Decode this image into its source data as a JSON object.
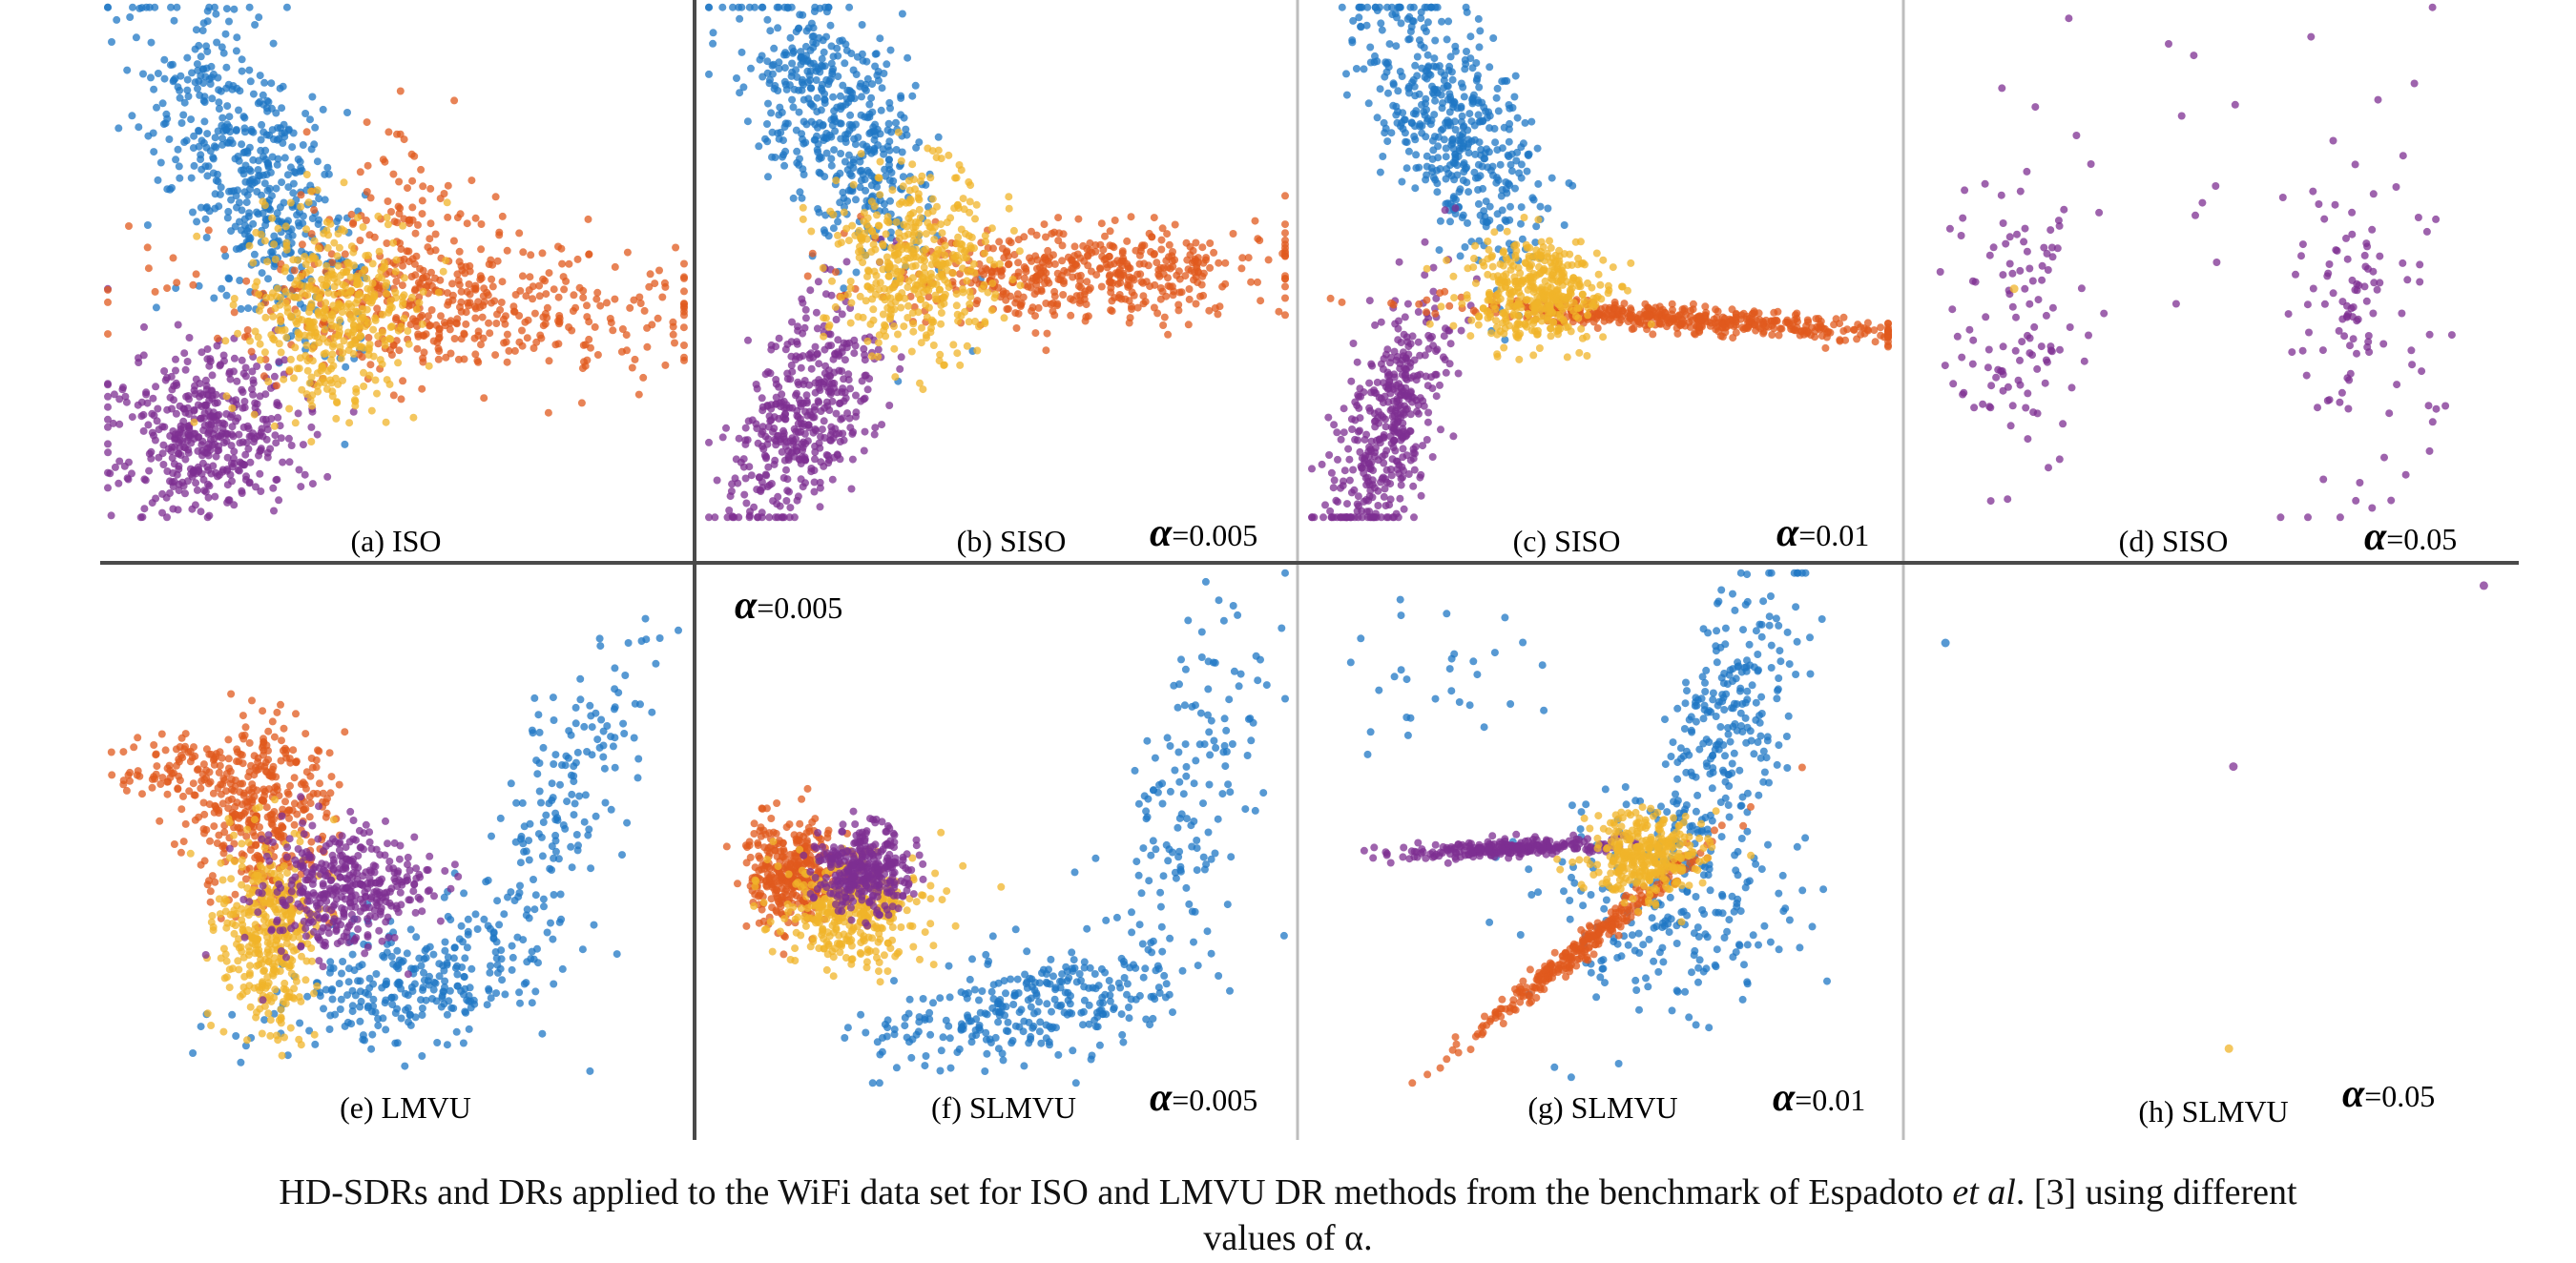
{
  "colors": {
    "blue": "#1f77c4",
    "orange": "#e05a1e",
    "yellow": "#f0b429",
    "purple": "#7e2f92",
    "frame_dark": "#4a4a4a",
    "frame_light": "#bdbdbd"
  },
  "caption": {
    "line1_prefix": "HD-SDRs and DRs applied to the WiFi data set for ISO and LMVU DR methods from the benchmark of Espadoto ",
    "line1_italic": "et al",
    "line1_suffix": ". [3] using different",
    "line2": "values of α."
  },
  "chart_data": [
    {
      "type": "scatter",
      "label": "(a) ISO",
      "alpha": "",
      "series": [
        {
          "color": "blue",
          "clusters": [
            {
              "cx": 0.25,
              "cy": 0.32,
              "sx": 0.07,
              "sy": 0.17,
              "n": 520,
              "rot": -0.35
            }
          ]
        },
        {
          "color": "purple",
          "clusters": [
            {
              "cx": 0.17,
              "cy": 0.83,
              "sx": 0.08,
              "sy": 0.08,
              "n": 450,
              "rot": -0.4
            }
          ]
        },
        {
          "color": "orange",
          "clusters": [
            {
              "cx": 0.6,
              "cy": 0.58,
              "sx": 0.2,
              "sy": 0.07,
              "n": 480,
              "rot": 0.05
            },
            {
              "cx": 0.5,
              "cy": 0.4,
              "sx": 0.06,
              "sy": 0.1,
              "n": 70,
              "rot": 0
            }
          ]
        },
        {
          "color": "yellow",
          "clusters": [
            {
              "cx": 0.39,
              "cy": 0.6,
              "sx": 0.07,
              "sy": 0.1,
              "n": 420,
              "rot": 0
            }
          ]
        }
      ]
    },
    {
      "type": "scatter",
      "label": "(b) SISO",
      "alpha": "=0.005",
      "series": [
        {
          "color": "blue",
          "clusters": [
            {
              "cx": 0.22,
              "cy": 0.23,
              "sx": 0.06,
              "sy": 0.14,
              "n": 480,
              "rot": -0.45
            }
          ]
        },
        {
          "color": "purple",
          "clusters": [
            {
              "cx": 0.17,
              "cy": 0.8,
              "sx": 0.05,
              "sy": 0.12,
              "n": 430,
              "rot": 0.35
            }
          ]
        },
        {
          "color": "orange",
          "clusters": [
            {
              "cx": 0.65,
              "cy": 0.52,
              "sx": 0.17,
              "sy": 0.045,
              "n": 480,
              "rot": -0.03
            }
          ]
        },
        {
          "color": "yellow",
          "clusters": [
            {
              "cx": 0.36,
              "cy": 0.5,
              "sx": 0.07,
              "sy": 0.09,
              "n": 420,
              "rot": 0
            }
          ]
        }
      ]
    },
    {
      "type": "scatter",
      "label": "(c) SISO",
      "alpha": "=0.01",
      "series": [
        {
          "color": "blue",
          "clusters": [
            {
              "cx": 0.24,
              "cy": 0.23,
              "sx": 0.06,
              "sy": 0.14,
              "n": 470,
              "rot": -0.4
            }
          ]
        },
        {
          "color": "purple",
          "clusters": [
            {
              "cx": 0.14,
              "cy": 0.82,
              "sx": 0.04,
              "sy": 0.13,
              "n": 420,
              "rot": 0.25
            }
          ]
        },
        {
          "color": "orange",
          "clusters": [
            {
              "cx": 0.65,
              "cy": 0.61,
              "sx": 0.2,
              "sy": 0.012,
              "n": 460,
              "rot": 0.07
            }
          ]
        },
        {
          "color": "yellow",
          "clusters": [
            {
              "cx": 0.39,
              "cy": 0.56,
              "sx": 0.06,
              "sy": 0.05,
              "n": 400,
              "rot": 0
            }
          ]
        }
      ]
    },
    {
      "type": "scatter",
      "label": "(d) SISO",
      "alpha": "=0.05",
      "series": [
        {
          "color": "purple",
          "clusters": [
            {
              "cx": 0.17,
              "cy": 0.6,
              "sx": 0.06,
              "sy": 0.16,
              "n": 110,
              "rot": 0
            },
            {
              "cx": 0.77,
              "cy": 0.6,
              "sx": 0.06,
              "sy": 0.16,
              "n": 110,
              "rot": 0
            },
            {
              "cx": 0.5,
              "cy": 0.35,
              "sx": 0.2,
              "sy": 0.2,
              "n": 20,
              "rot": 0
            }
          ]
        },
        {
          "color": "yellow",
          "clusters": [
            {
              "cx": 0.17,
              "cy": 0.55,
              "sx": 0.005,
              "sy": 0.005,
              "n": 1,
              "rot": 0
            }
          ]
        }
      ]
    },
    {
      "type": "scatter",
      "label": "(e) LMVU",
      "alpha": "",
      "series": [
        {
          "color": "blue",
          "clusters": [
            {
              "cx": 0.52,
              "cy": 0.8,
              "sx": 0.13,
              "sy": 0.06,
              "n": 280,
              "rot": -0.3
            },
            {
              "cx": 0.78,
              "cy": 0.45,
              "sx": 0.05,
              "sy": 0.17,
              "n": 170,
              "rot": 0.35
            }
          ]
        },
        {
          "color": "orange",
          "clusters": [
            {
              "cx": 0.27,
              "cy": 0.47,
              "sx": 0.06,
              "sy": 0.09,
              "n": 380,
              "rot": 0
            },
            {
              "cx": 0.12,
              "cy": 0.38,
              "sx": 0.05,
              "sy": 0.03,
              "n": 70,
              "rot": 0
            }
          ]
        },
        {
          "color": "yellow",
          "clusters": [
            {
              "cx": 0.28,
              "cy": 0.7,
              "sx": 0.04,
              "sy": 0.1,
              "n": 380,
              "rot": 0
            }
          ]
        },
        {
          "color": "purple",
          "clusters": [
            {
              "cx": 0.41,
              "cy": 0.62,
              "sx": 0.07,
              "sy": 0.06,
              "n": 380,
              "rot": 0
            }
          ]
        }
      ]
    },
    {
      "type": "scatter",
      "label": "(f) SLMVU",
      "alpha": "=0.005",
      "series": [
        {
          "color": "blue",
          "clusters": [
            {
              "cx": 0.55,
              "cy": 0.85,
              "sx": 0.14,
              "sy": 0.05,
              "n": 300,
              "rot": -0.2
            },
            {
              "cx": 0.82,
              "cy": 0.45,
              "sx": 0.05,
              "sy": 0.2,
              "n": 150,
              "rot": 0.25
            }
          ]
        },
        {
          "color": "orange",
          "clusters": [
            {
              "cx": 0.15,
              "cy": 0.58,
              "sx": 0.04,
              "sy": 0.05,
              "n": 350,
              "rot": 0
            }
          ]
        },
        {
          "color": "yellow",
          "clusters": [
            {
              "cx": 0.25,
              "cy": 0.66,
              "sx": 0.06,
              "sy": 0.05,
              "n": 380,
              "rot": 0
            }
          ]
        },
        {
          "color": "purple",
          "clusters": [
            {
              "cx": 0.27,
              "cy": 0.58,
              "sx": 0.04,
              "sy": 0.04,
              "n": 330,
              "rot": 0
            }
          ]
        }
      ]
    },
    {
      "type": "scatter",
      "label": "(g) SLMVU",
      "alpha": "=0.01",
      "series": [
        {
          "color": "blue",
          "clusters": [
            {
              "cx": 0.72,
              "cy": 0.3,
              "sx": 0.05,
              "sy": 0.15,
              "n": 250,
              "rot": 0.25
            },
            {
              "cx": 0.6,
              "cy": 0.65,
              "sx": 0.12,
              "sy": 0.11,
              "n": 230,
              "rot": 0
            },
            {
              "cx": 0.2,
              "cy": 0.2,
              "sx": 0.1,
              "sy": 0.06,
              "n": 30,
              "rot": 0
            }
          ]
        },
        {
          "color": "purple",
          "clusters": [
            {
              "cx": 0.35,
              "cy": 0.54,
              "sx": 0.1,
              "sy": 0.008,
              "n": 260,
              "rot": -0.05
            }
          ]
        },
        {
          "color": "orange",
          "clusters": [
            {
              "cx": 0.48,
              "cy": 0.72,
              "sx": 0.14,
              "sy": 0.01,
              "n": 300,
              "rot": -0.75
            }
          ]
        },
        {
          "color": "yellow",
          "clusters": [
            {
              "cx": 0.58,
              "cy": 0.55,
              "sx": 0.05,
              "sy": 0.04,
              "n": 330,
              "rot": 0
            }
          ]
        }
      ]
    },
    {
      "type": "scatter",
      "label": "(h) SLMVU",
      "alpha": "=0.05",
      "series": [
        {
          "color": "blue",
          "clusters": [
            {
              "cx": 0.05,
              "cy": 0.14,
              "sx": 0.002,
              "sy": 0.002,
              "n": 1,
              "rot": 0
            }
          ]
        },
        {
          "color": "purple",
          "clusters": [
            {
              "cx": 0.55,
              "cy": 0.38,
              "sx": 0.002,
              "sy": 0.002,
              "n": 1,
              "rot": 0
            },
            {
              "cx": 0.98,
              "cy": 0.03,
              "sx": 0.002,
              "sy": 0.002,
              "n": 1,
              "rot": 0
            }
          ]
        },
        {
          "color": "yellow",
          "clusters": [
            {
              "cx": 0.54,
              "cy": 0.93,
              "sx": 0.002,
              "sy": 0.002,
              "n": 1,
              "rot": 0
            }
          ]
        }
      ]
    }
  ]
}
